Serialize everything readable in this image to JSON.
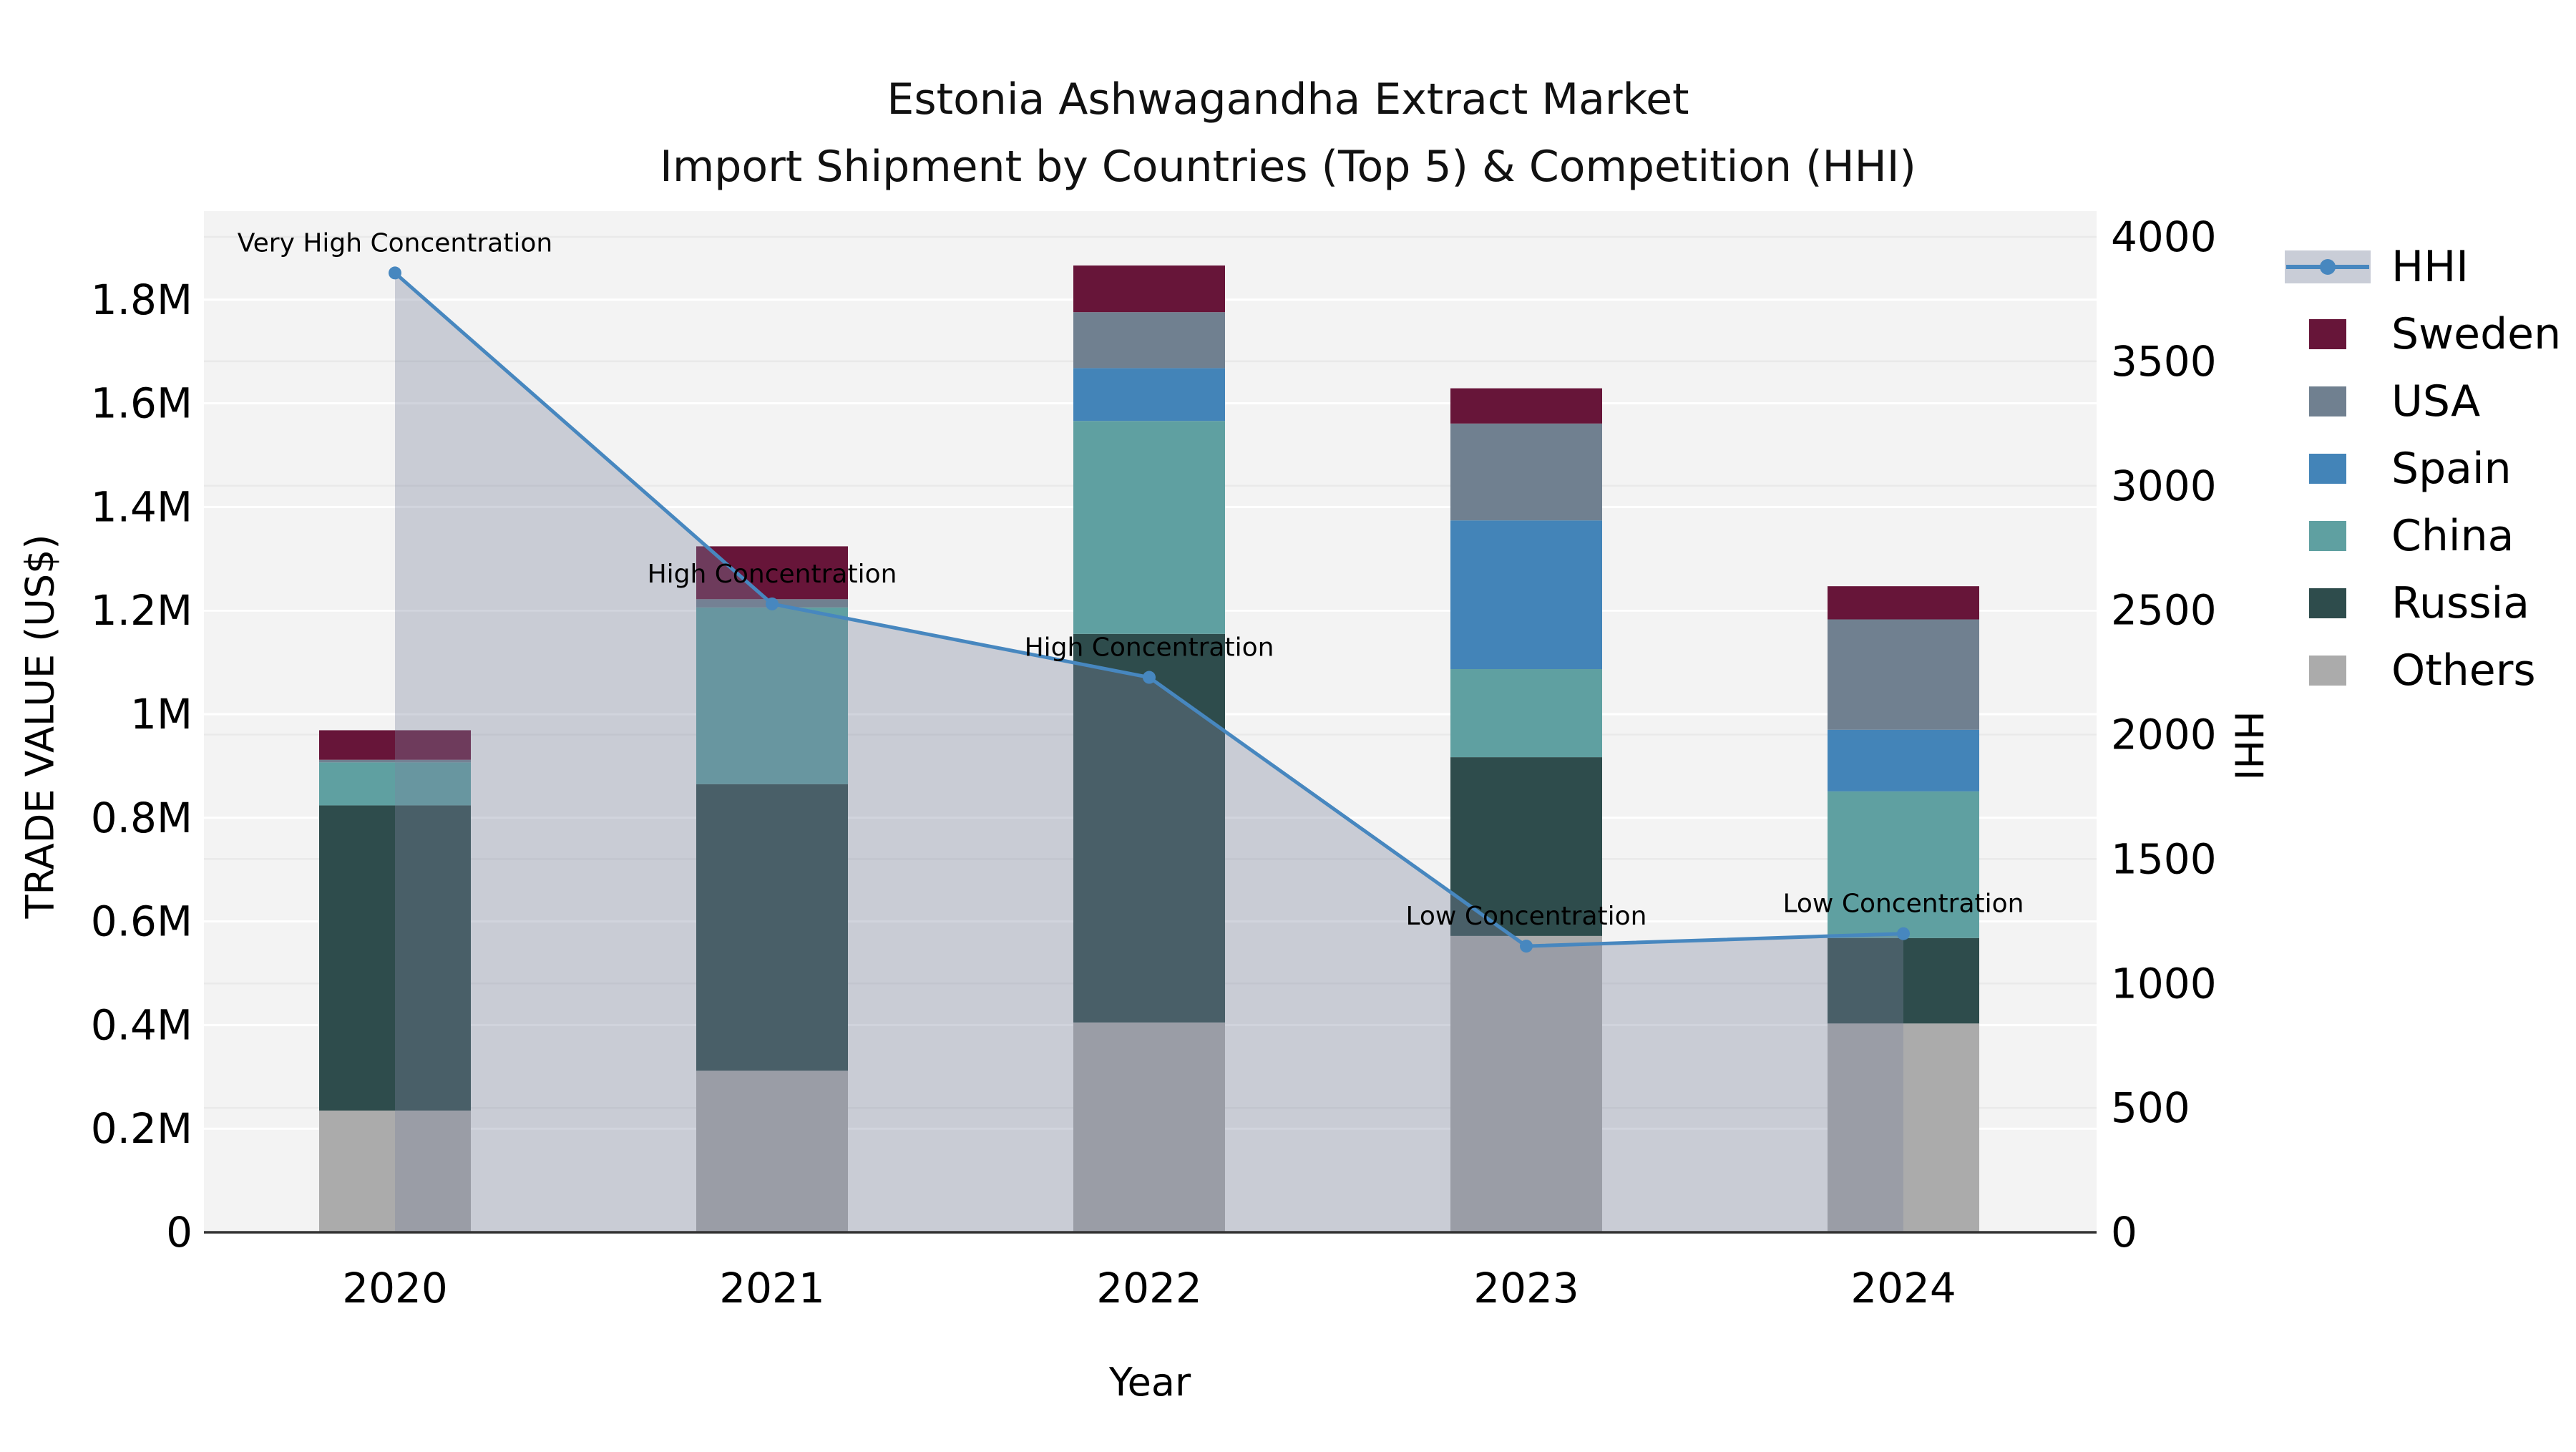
{
  "title": {
    "line1": "Estonia Ashwagandha Extract Market",
    "line2": "Import Shipment by Countries (Top 5) & Competition (HHI)"
  },
  "axis_labels": {
    "y_left": "TRADE VALUE (US$)",
    "y_right": "HHI",
    "x": "Year"
  },
  "legend": {
    "items": [
      {
        "label": "HHI",
        "type": "line"
      },
      {
        "label": "Sweden",
        "color": "#671539"
      },
      {
        "label": "USA",
        "color": "#708090"
      },
      {
        "label": "Spain",
        "color": "#4384b8"
      },
      {
        "label": "China",
        "color": "#5fa0a1"
      },
      {
        "label": "Russia",
        "color": "#2e4c4c"
      },
      {
        "label": "Others",
        "color": "#ababab"
      }
    ]
  },
  "colors": {
    "hhi_line": "#4787bf",
    "hhi_fill": "rgba(122,131,158,0.35)",
    "hhi_patch": "#c9cdd7",
    "plot_bg": "#f3f3f3",
    "grid_major": "#ffffff",
    "grid_minor": "#e9e9e9",
    "spine": "#333333",
    "text": "#000000"
  },
  "chart_data": {
    "type": "bar",
    "subtype": "stacked-bars-with-line-overlay",
    "title": "Estonia Ashwagandha Extract Market — Import Shipment by Countries (Top 5) & Competition (HHI)",
    "categories": [
      "2020",
      "2021",
      "2022",
      "2023",
      "2024"
    ],
    "xlabel": "Year",
    "ylabel": "TRADE VALUE (US$)",
    "ylabel_right": "HHI",
    "ylim": [
      0,
      1970000
    ],
    "ylim_right": [
      0,
      4100
    ],
    "grid": true,
    "legend_position": "right",
    "series": [
      {
        "name": "Others",
        "color": "#ababab",
        "values_usd": [
          235000,
          312000,
          405000,
          572000,
          403000
        ]
      },
      {
        "name": "Russia",
        "color": "#2e4c4c",
        "values_usd": [
          589000,
          553000,
          750000,
          345000,
          165000
        ]
      },
      {
        "name": "China",
        "color": "#5fa0a1",
        "values_usd": [
          83000,
          341000,
          411000,
          170000,
          283000
        ]
      },
      {
        "name": "Spain",
        "color": "#4384b8",
        "values_usd": [
          0,
          0,
          102000,
          287000,
          119000
        ]
      },
      {
        "name": "USA",
        "color": "#708090",
        "values_usd": [
          5000,
          16000,
          108000,
          187000,
          213000
        ]
      },
      {
        "name": "Sweden",
        "color": "#671539",
        "values_usd": [
          57000,
          102000,
          90000,
          68000,
          64000
        ]
      }
    ],
    "line_series": {
      "name": "HHI",
      "axis": "right",
      "values": [
        3855,
        2525,
        2230,
        1150,
        1200
      ],
      "annotations": [
        "Very High Concentration",
        "High Concentration",
        "High Concentration",
        "Low Concentration",
        "Low Concentration"
      ]
    },
    "yticks_left": [
      {
        "value": 0,
        "label": "0"
      },
      {
        "value": 200000,
        "label": "0.2M"
      },
      {
        "value": 400000,
        "label": "0.4M"
      },
      {
        "value": 600000,
        "label": "0.6M"
      },
      {
        "value": 800000,
        "label": "0.8M"
      },
      {
        "value": 1000000,
        "label": "1M"
      },
      {
        "value": 1200000,
        "label": "1.2M"
      },
      {
        "value": 1400000,
        "label": "1.4M"
      },
      {
        "value": 1600000,
        "label": "1.6M"
      },
      {
        "value": 1800000,
        "label": "1.8M"
      }
    ],
    "yticks_right": [
      {
        "value": 0,
        "label": "0"
      },
      {
        "value": 500,
        "label": "500"
      },
      {
        "value": 1000,
        "label": "1000"
      },
      {
        "value": 1500,
        "label": "1500"
      },
      {
        "value": 2000,
        "label": "2000"
      },
      {
        "value": 2500,
        "label": "2500"
      },
      {
        "value": 3000,
        "label": "3000"
      },
      {
        "value": 3500,
        "label": "3500"
      },
      {
        "value": 4000,
        "label": "4000"
      }
    ]
  }
}
